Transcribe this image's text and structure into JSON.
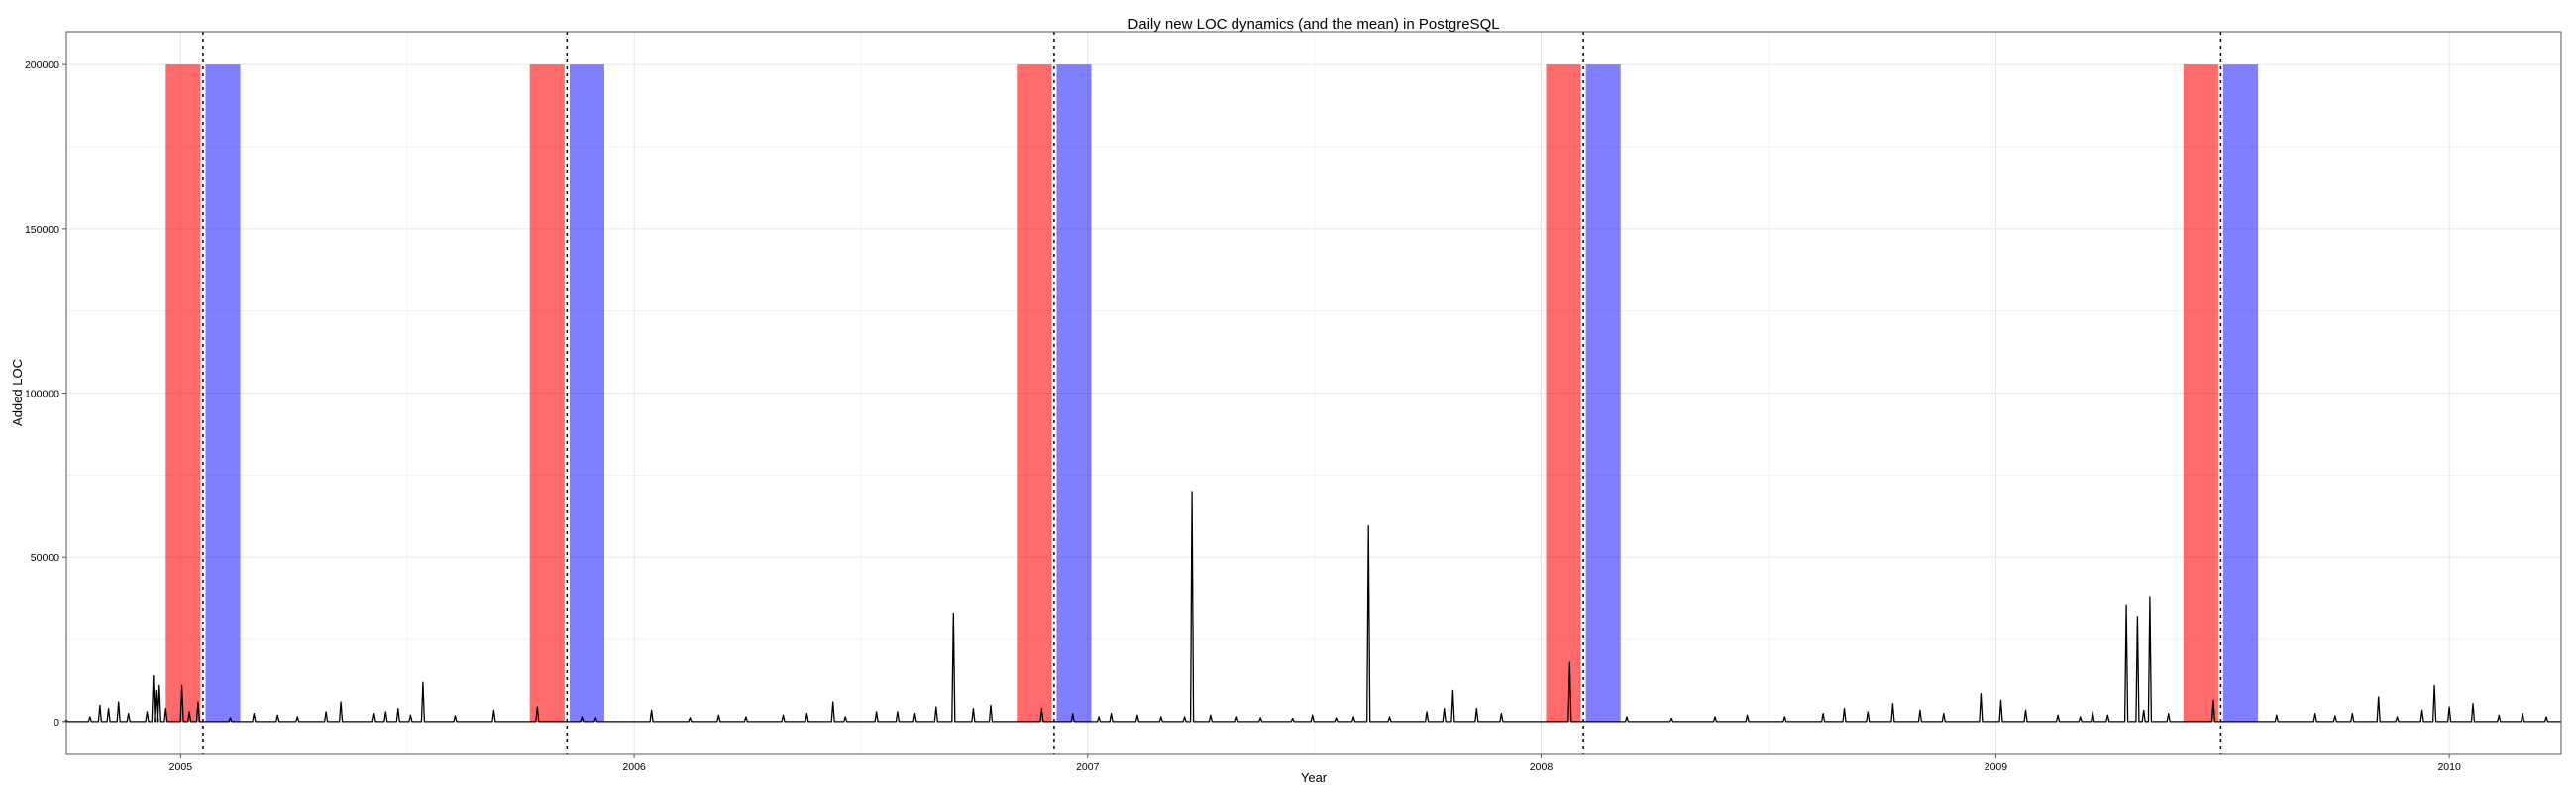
{
  "chart_data": {
    "type": "line",
    "title": "Daily new LOC dynamics (and the mean) in PostgreSQL",
    "xlabel": "Year",
    "ylabel": "Added LOC",
    "xlim": [
      "2004-10-01",
      "2010-04-01"
    ],
    "ylim": [
      -10000,
      210000
    ],
    "x_ticks": [
      "2005",
      "2006",
      "2007",
      "2008",
      "2009",
      "2010"
    ],
    "x_tick_dates": [
      "2005-01-01",
      "2006-01-01",
      "2007-01-01",
      "2008-01-01",
      "2009-01-01",
      "2010-01-01"
    ],
    "y_ticks": [
      0,
      50000,
      100000,
      150000,
      200000
    ],
    "grid": true,
    "release_dates": [
      "2005-01-19",
      "2005-11-08",
      "2006-12-05",
      "2008-02-04",
      "2009-07-01"
    ],
    "red_bands": [
      [
        "2004-12-20",
        "2005-01-17"
      ],
      [
        "2005-10-09",
        "2005-11-06"
      ],
      [
        "2006-11-05",
        "2006-12-03"
      ],
      [
        "2008-01-05",
        "2008-02-02"
      ],
      [
        "2009-06-01",
        "2009-06-29"
      ]
    ],
    "blue_bands": [
      [
        "2005-01-21",
        "2005-02-18"
      ],
      [
        "2005-11-10",
        "2005-12-08"
      ],
      [
        "2006-12-07",
        "2007-01-04"
      ],
      [
        "2008-02-06",
        "2008-03-05"
      ],
      [
        "2009-07-03",
        "2009-07-31"
      ]
    ],
    "band_top": 200000,
    "series": [
      {
        "x": [
          "2004-10-01",
          "2004-10-20",
          "2004-10-28",
          "2004-11-04",
          "2004-11-12",
          "2004-11-20",
          "2004-12-05",
          "2004-12-10",
          "2004-12-12",
          "2004-12-14",
          "2004-12-20",
          "2005-01-02",
          "2005-01-08",
          "2005-01-15",
          "2005-02-10",
          "2005-03-01",
          "2005-03-20",
          "2005-04-05",
          "2005-04-28",
          "2005-05-10",
          "2005-06-05",
          "2005-06-15",
          "2005-06-25",
          "2005-07-05",
          "2005-07-15",
          "2005-08-10",
          "2005-09-10",
          "2005-10-15",
          "2005-11-20",
          "2005-12-01",
          "2006-01-15",
          "2006-02-15",
          "2006-03-10",
          "2006-04-01",
          "2006-05-01",
          "2006-05-20",
          "2006-06-10",
          "2006-06-20",
          "2006-07-15",
          "2006-08-01",
          "2006-08-15",
          "2006-09-01",
          "2006-09-15",
          "2006-10-01",
          "2006-10-15",
          "2006-11-25",
          "2006-12-20",
          "2007-01-10",
          "2007-01-20",
          "2007-02-10",
          "2007-03-01",
          "2007-03-20",
          "2007-03-26",
          "2007-04-10",
          "2007-05-01",
          "2007-05-20",
          "2007-06-15",
          "2007-07-01",
          "2007-07-20",
          "2007-08-03",
          "2007-08-15",
          "2007-09-01",
          "2007-10-01",
          "2007-10-15",
          "2007-10-22",
          "2007-11-10",
          "2007-11-30",
          "2008-01-24",
          "2008-03-10",
          "2008-04-15",
          "2008-05-20",
          "2008-06-15",
          "2008-07-15",
          "2008-08-15",
          "2008-09-01",
          "2008-09-20",
          "2008-10-10",
          "2008-11-01",
          "2008-11-20",
          "2008-12-20",
          "2009-01-05",
          "2009-01-25",
          "2009-02-20",
          "2009-03-10",
          "2009-03-20",
          "2009-04-01",
          "2009-04-16",
          "2009-04-25",
          "2009-04-30",
          "2009-05-05",
          "2009-05-20",
          "2009-06-25",
          "2009-08-15",
          "2009-09-15",
          "2009-10-01",
          "2009-10-15",
          "2009-11-05",
          "2009-11-20",
          "2009-12-10",
          "2009-12-20",
          "2010-01-01",
          "2010-01-20",
          "2010-02-10",
          "2010-03-01",
          "2010-03-20"
        ],
        "y": [
          500,
          1500,
          5000,
          4000,
          6000,
          2500,
          3000,
          14000,
          9500,
          11000,
          4000,
          11000,
          3000,
          6000,
          1200,
          2500,
          2000,
          1500,
          3000,
          6000,
          2500,
          3000,
          4000,
          2000,
          12000,
          1800,
          3500,
          4500,
          1500,
          1200,
          3500,
          1200,
          2000,
          1500,
          2000,
          2500,
          6000,
          1500,
          3000,
          3000,
          2500,
          4500,
          33000,
          4000,
          5000,
          4000,
          2500,
          1500,
          2500,
          2000,
          1500,
          1500,
          70000,
          2000,
          1500,
          1200,
          1000,
          2000,
          1200,
          1500,
          59500,
          1500,
          3000,
          4000,
          9500,
          4000,
          2500,
          18000,
          1500,
          1000,
          1500,
          2000,
          1500,
          2500,
          4000,
          3000,
          5500,
          3500,
          2500,
          8500,
          6500,
          3500,
          2000,
          1500,
          3000,
          2000,
          35500,
          32000,
          3500,
          38000,
          2500,
          6500,
          2000,
          2500,
          1800,
          2500,
          7500,
          1500,
          3500,
          11000,
          4500,
          5500,
          2000,
          2500,
          1500
        ]
      }
    ]
  }
}
